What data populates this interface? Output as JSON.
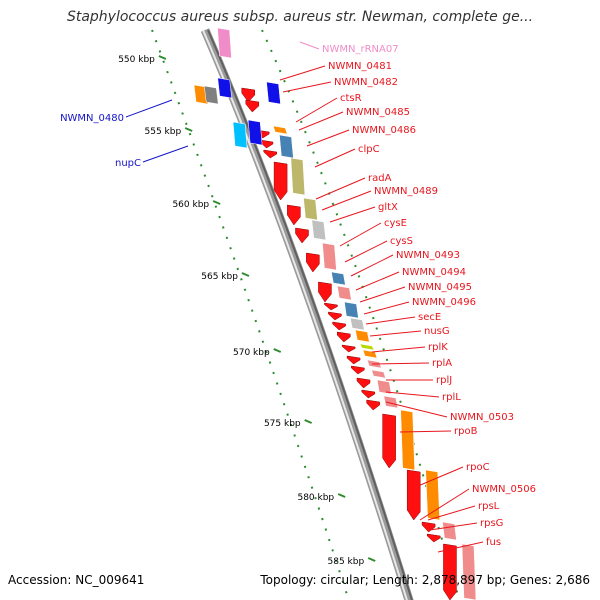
{
  "title": "Staphylococcus aureus subsp. aureus str. Newman, complete ge...",
  "footer": {
    "accession": "Accession: NC_009641",
    "topology": "Topology: circular; Length: 2,878,897 bp; Genes: 2,686"
  },
  "colors": {
    "forward_label": "#e8161e",
    "reverse_label": "#1414c8",
    "rna_label": "#f08cc8",
    "backbone": "#808080",
    "tick": "#2e8b2e",
    "gene_red": "#ff1010",
    "gene_pink": "#f08c8c",
    "gene_orange": "#ff8c00",
    "gene_olive": "#bdb76b",
    "gene_steel": "#4682b4",
    "gene_grey": "#c0c0c0",
    "gene_blue": "#1010e8",
    "gene_cyan": "#00c0ff"
  },
  "scale_ticks": [
    {
      "label": "550 kbp"
    },
    {
      "label": "555 kbp"
    },
    {
      "label": "560 kbp"
    },
    {
      "label": "565 kbp"
    },
    {
      "label": "570 kbp"
    },
    {
      "label": "575 kbp"
    },
    {
      "label": "580 kbp"
    },
    {
      "label": "585 kbp"
    }
  ],
  "forward_genes": [
    {
      "label": "NWMN_rRNA07",
      "type": "rna"
    },
    {
      "label": "NWMN_0481",
      "type": "cds"
    },
    {
      "label": "NWMN_0482",
      "type": "cds"
    },
    {
      "label": "ctsR",
      "type": "cds"
    },
    {
      "label": "NWMN_0485",
      "type": "cds"
    },
    {
      "label": "NWMN_0486",
      "type": "cds"
    },
    {
      "label": "clpC",
      "type": "cds"
    },
    {
      "label": "radA",
      "type": "cds"
    },
    {
      "label": "NWMN_0489",
      "type": "cds"
    },
    {
      "label": "gltX",
      "type": "cds"
    },
    {
      "label": "cysE",
      "type": "cds"
    },
    {
      "label": "cysS",
      "type": "cds"
    },
    {
      "label": "NWMN_0493",
      "type": "cds"
    },
    {
      "label": "NWMN_0494",
      "type": "cds"
    },
    {
      "label": "NWMN_0495",
      "type": "cds"
    },
    {
      "label": "NWMN_0496",
      "type": "cds"
    },
    {
      "label": "secE",
      "type": "cds"
    },
    {
      "label": "nusG",
      "type": "cds"
    },
    {
      "label": "rplK",
      "type": "cds"
    },
    {
      "label": "rplA",
      "type": "cds"
    },
    {
      "label": "rplJ",
      "type": "cds"
    },
    {
      "label": "rplL",
      "type": "cds"
    },
    {
      "label": "NWMN_0503",
      "type": "cds"
    },
    {
      "label": "rpoB",
      "type": "cds"
    },
    {
      "label": "rpoC",
      "type": "cds"
    },
    {
      "label": "NWMN_0506",
      "type": "cds"
    },
    {
      "label": "rpsL",
      "type": "cds"
    },
    {
      "label": "rpsG",
      "type": "cds"
    },
    {
      "label": "fus",
      "type": "cds"
    }
  ],
  "reverse_genes": [
    {
      "label": "NWMN_0480"
    },
    {
      "label": "nupC"
    }
  ]
}
